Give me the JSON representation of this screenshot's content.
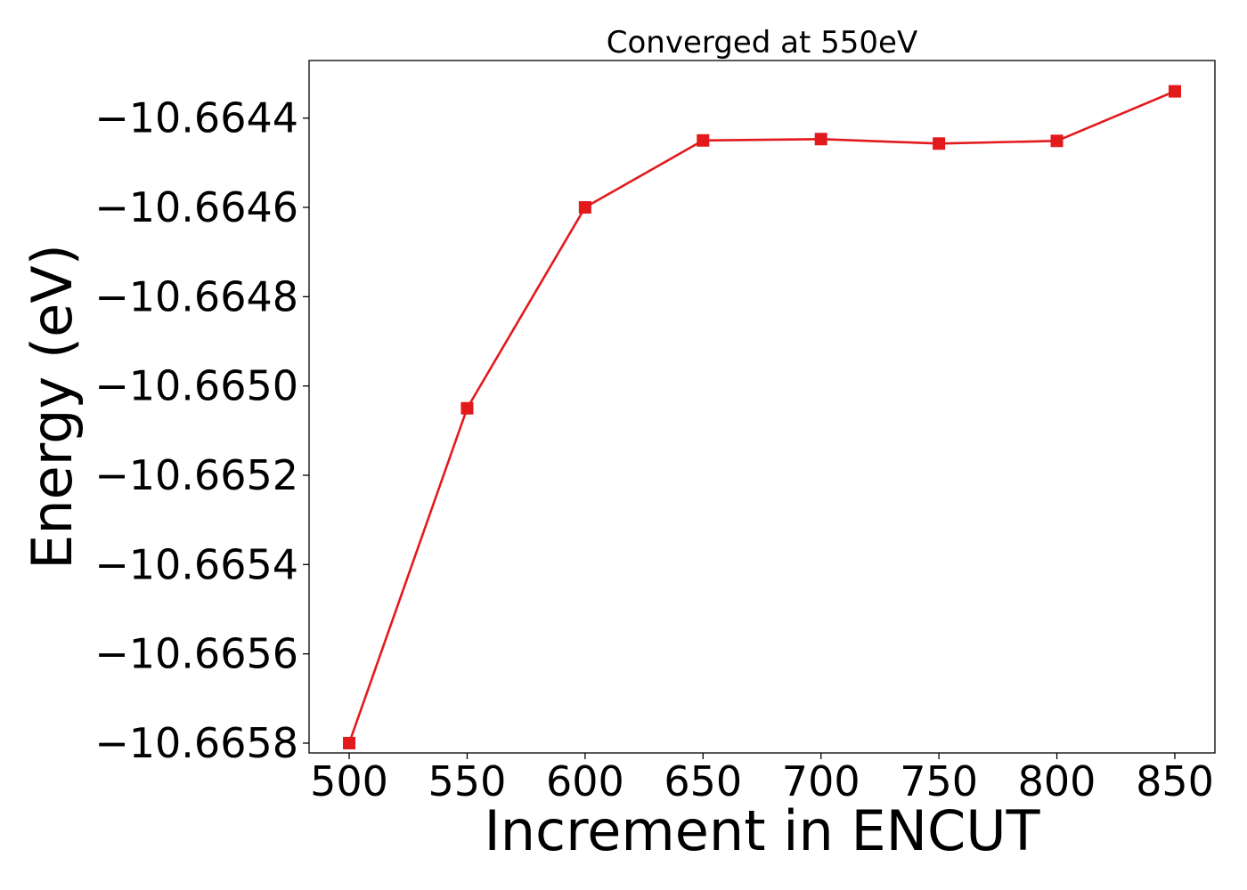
{
  "chart_data": {
    "type": "line",
    "title": "Converged at 550eV",
    "xlabel": "Increment in ENCUT",
    "ylabel": "Energy (eV)",
    "x": [
      500,
      550,
      600,
      650,
      700,
      750,
      800,
      850
    ],
    "series": [
      {
        "values": [
          -10.6658,
          -10.66505,
          -10.6646,
          -10.66445,
          -10.664447,
          -10.664457,
          -10.664451,
          -10.66434
        ],
        "color": "#e31a1c",
        "marker": "square"
      }
    ],
    "x_ticks": [
      500,
      550,
      600,
      650,
      700,
      750,
      800,
      850
    ],
    "x_tick_labels": [
      "500",
      "550",
      "600",
      "650",
      "700",
      "750",
      "800",
      "850"
    ],
    "y_ticks": [
      -10.6644,
      -10.6646,
      -10.6648,
      -10.665,
      -10.6652,
      -10.6654,
      -10.6656,
      -10.6658
    ],
    "y_tick_labels": [
      "−10.6644",
      "−10.6646",
      "−10.6648",
      "−10.6650",
      "−10.6652",
      "−10.6654",
      "−10.6656",
      "−10.6658"
    ],
    "xlim": [
      483,
      867
    ],
    "ylim": [
      -10.665822,
      -10.664271
    ],
    "grid": false,
    "legend": "none"
  }
}
